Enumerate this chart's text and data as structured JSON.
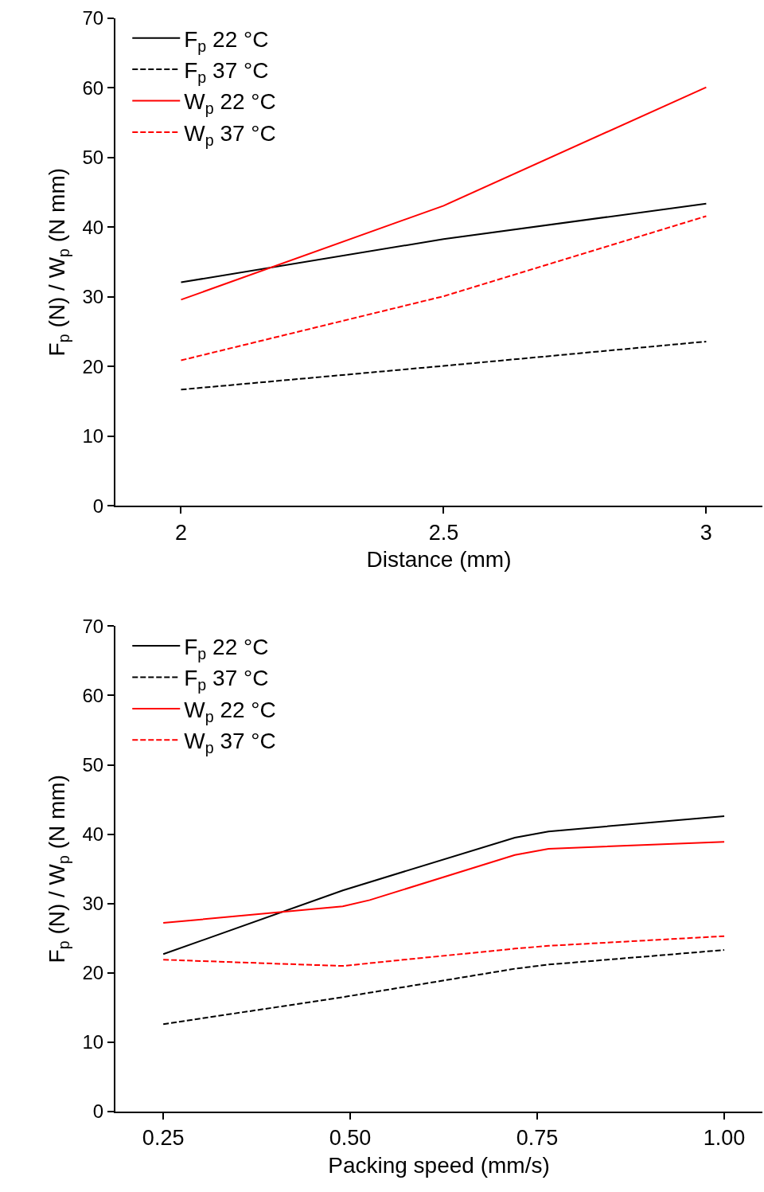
{
  "chart_data": [
    {
      "type": "line",
      "xlabel": "Distance (mm)",
      "ylabel": "F$_{p}$ (N) / W$_{p}$ (N mm)",
      "x": [
        2,
        2.5,
        3
      ],
      "xlim": [
        1.875,
        3.107
      ],
      "xticks": [
        2,
        2.5,
        3
      ],
      "ylim": [
        0,
        70
      ],
      "yticks": [
        0,
        10,
        20,
        30,
        40,
        50,
        60,
        70
      ],
      "grid": false,
      "legend": "top left",
      "marker": "none",
      "series": [
        {
          "name": "F$_{p}$ 22 °C",
          "color": "#000000",
          "line_style": "solid",
          "values": [
            32.1,
            38.3,
            43.4
          ]
        },
        {
          "name": "F$_{p}$ 37 °C",
          "color": "#000000",
          "line_style": "dashed",
          "values": [
            16.7,
            20.1,
            23.6
          ]
        },
        {
          "name": "W$_{p}$ 22 °C",
          "color": "#ff0000",
          "line_style": "solid",
          "values": [
            29.6,
            43.1,
            60.1
          ]
        },
        {
          "name": "W$_{p}$ 37 °C",
          "color": "#ff0000",
          "line_style": "dashed",
          "values": [
            20.9,
            30.1,
            41.6
          ]
        }
      ]
    },
    {
      "type": "line",
      "xlabel": "Packing speed (mm/s)",
      "ylabel": "F$_{p}$ (N) / W$_{p}$ (N mm)",
      "xlim": [
        0.186,
        1.051
      ],
      "xticks": [
        0.25,
        {
          "value": 0.5,
          "label": "0.50"
        },
        0.75,
        {
          "value": 1.0,
          "label": "1.00"
        }
      ],
      "ylim": [
        0,
        70
      ],
      "yticks": [
        0,
        10,
        20,
        30,
        40,
        50,
        60,
        70
      ],
      "grid": false,
      "legend": "top left",
      "marker": "none",
      "series": [
        {
          "name": "F$_{p}$ 22 °C",
          "color": "#000000",
          "line_style": "solid",
          "x": [
            0.25,
            0.49,
            0.72,
            0.765,
            1.0
          ],
          "values": [
            22.7,
            31.9,
            39.5,
            40.4,
            42.6
          ]
        },
        {
          "name": "F$_{p}$ 37 °C",
          "color": "#000000",
          "line_style": "dashed",
          "x": [
            0.25,
            0.49,
            0.72,
            0.765,
            1.0
          ],
          "values": [
            12.6,
            16.5,
            20.6,
            21.2,
            23.3
          ]
        },
        {
          "name": "W$_{p}$ 22 °C",
          "color": "#ff0000",
          "line_style": "solid",
          "x": [
            0.25,
            0.49,
            0.526,
            0.72,
            0.765,
            1.0
          ],
          "values": [
            27.2,
            29.6,
            30.5,
            37.0,
            37.9,
            38.9
          ]
        },
        {
          "name": "W$_{p}$ 37 °C",
          "color": "#ff0000",
          "line_style": "dashed",
          "x": [
            0.25,
            0.49,
            0.526,
            0.72,
            0.765,
            1.0
          ],
          "values": [
            21.9,
            21.0,
            21.4,
            23.5,
            23.9,
            25.3
          ]
        }
      ]
    }
  ]
}
